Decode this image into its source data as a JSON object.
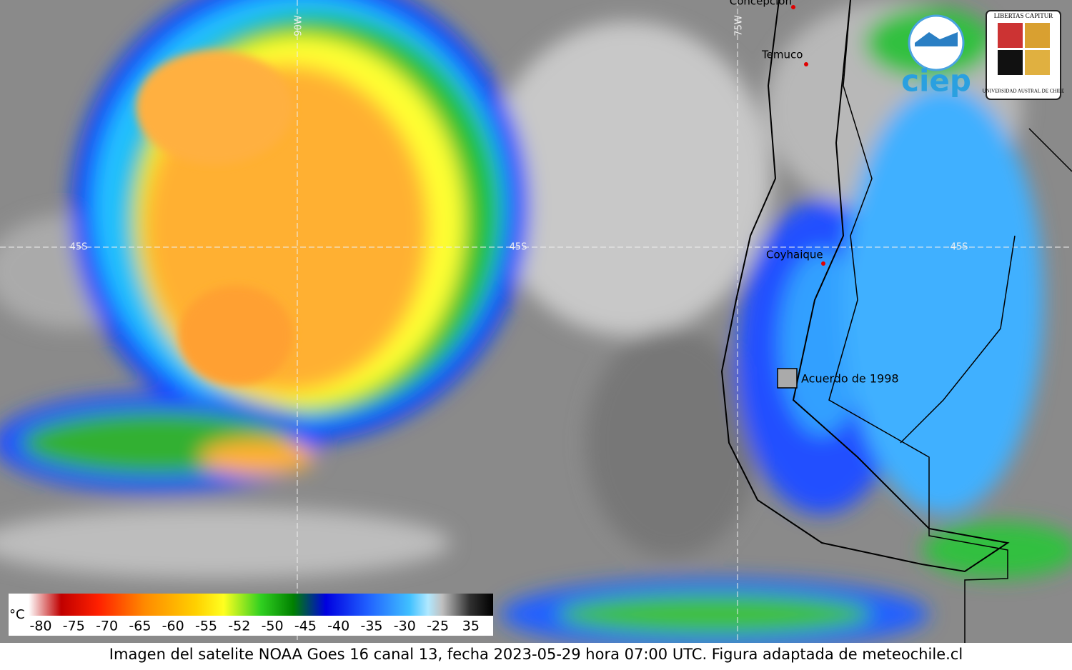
{
  "image": {
    "grid_labels": [
      "90W",
      "75W",
      "45S",
      "45S",
      "45S"
    ],
    "cities": [
      "Concepción",
      "Temuco",
      "Coyhaique"
    ],
    "annotation": "Acuerdo de 1998",
    "logos": {
      "ciep": "ciep",
      "motto": "LIBERTAS CAPITUR",
      "university": "UNIVERSIDAD AUSTRAL DE CHILE"
    },
    "colorbar": {
      "unit": "°C",
      "ticks": [
        "-80",
        "-75",
        "-70",
        "-65",
        "-60",
        "-55",
        "-52",
        "-50",
        "-45",
        "-40",
        "-35",
        "-30",
        "-25",
        "35"
      ]
    },
    "caption": "Imagen del satelite NOAA Goes 16 canal 13, fecha 2023-05-29 hora 07:00 UTC. Figura adaptada de meteochile.cl"
  }
}
